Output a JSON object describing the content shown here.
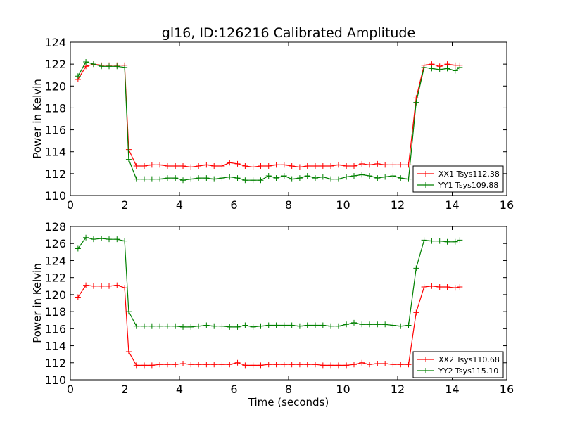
{
  "chart_data": [
    {
      "type": "line",
      "title": "gl16, ID:126216 Calibrated Amplitude",
      "xlabel": "",
      "ylabel": "Power in Kelvin",
      "xlim": [
        0,
        16
      ],
      "ylim": [
        110,
        124
      ],
      "xticks": [
        0,
        2,
        4,
        6,
        8,
        10,
        12,
        14,
        16
      ],
      "yticks": [
        110,
        112,
        114,
        116,
        118,
        120,
        122,
        124
      ],
      "grid": false,
      "legend_position": "lower-right",
      "x": [
        0.28,
        0.57,
        0.85,
        1.14,
        1.42,
        1.71,
        1.99,
        2.14,
        2.42,
        2.71,
        2.99,
        3.28,
        3.56,
        3.85,
        4.13,
        4.42,
        4.7,
        4.99,
        5.27,
        5.56,
        5.84,
        6.13,
        6.41,
        6.7,
        6.98,
        7.27,
        7.55,
        7.84,
        8.12,
        8.41,
        8.69,
        8.98,
        9.26,
        9.55,
        9.83,
        10.12,
        10.4,
        10.69,
        10.97,
        11.26,
        11.54,
        11.83,
        12.11,
        12.4,
        12.68,
        12.97,
        13.25,
        13.54,
        13.82,
        14.11,
        14.28
      ],
      "series": [
        {
          "name": "XX1 Tsys112.38",
          "color": "#ff0000",
          "values": [
            120.6,
            121.8,
            122.0,
            121.9,
            121.9,
            121.9,
            121.9,
            114.2,
            112.7,
            112.7,
            112.8,
            112.8,
            112.7,
            112.7,
            112.7,
            112.6,
            112.7,
            112.8,
            112.7,
            112.7,
            113.0,
            112.9,
            112.7,
            112.6,
            112.7,
            112.7,
            112.8,
            112.8,
            112.7,
            112.6,
            112.7,
            112.7,
            112.7,
            112.7,
            112.8,
            112.7,
            112.7,
            112.9,
            112.8,
            112.9,
            112.8,
            112.8,
            112.8,
            112.8,
            118.9,
            121.9,
            122.0,
            121.8,
            122.0,
            121.9,
            121.9
          ]
        },
        {
          "name": "YY1 Tsys109.88",
          "color": "#008000",
          "values": [
            120.9,
            122.2,
            122.0,
            121.8,
            121.8,
            121.8,
            121.7,
            113.3,
            111.5,
            111.5,
            111.5,
            111.5,
            111.6,
            111.6,
            111.4,
            111.5,
            111.6,
            111.6,
            111.5,
            111.6,
            111.7,
            111.6,
            111.4,
            111.4,
            111.4,
            111.8,
            111.6,
            111.8,
            111.5,
            111.6,
            111.8,
            111.6,
            111.7,
            111.5,
            111.5,
            111.7,
            111.8,
            111.9,
            111.8,
            111.6,
            111.7,
            111.8,
            111.6,
            111.5,
            118.5,
            121.7,
            121.6,
            121.5,
            121.6,
            121.4,
            121.7
          ]
        }
      ]
    },
    {
      "type": "line",
      "title": "",
      "xlabel": "Time (seconds)",
      "ylabel": "Power in Kelvin",
      "xlim": [
        0,
        16
      ],
      "ylim": [
        110,
        128
      ],
      "xticks": [
        0,
        2,
        4,
        6,
        8,
        10,
        12,
        14,
        16
      ],
      "yticks": [
        110,
        112,
        114,
        116,
        118,
        120,
        122,
        124,
        126,
        128
      ],
      "grid": false,
      "legend_position": "lower-right",
      "x": [
        0.28,
        0.57,
        0.85,
        1.14,
        1.42,
        1.71,
        1.99,
        2.14,
        2.42,
        2.71,
        2.99,
        3.28,
        3.56,
        3.85,
        4.13,
        4.42,
        4.7,
        4.99,
        5.27,
        5.56,
        5.84,
        6.13,
        6.41,
        6.7,
        6.98,
        7.27,
        7.55,
        7.84,
        8.12,
        8.41,
        8.69,
        8.98,
        9.26,
        9.55,
        9.83,
        10.12,
        10.4,
        10.69,
        10.97,
        11.26,
        11.54,
        11.83,
        12.11,
        12.4,
        12.68,
        12.97,
        13.25,
        13.54,
        13.82,
        14.11,
        14.28
      ],
      "series": [
        {
          "name": "XX2 Tsys110.68",
          "color": "#ff0000",
          "values": [
            119.7,
            121.1,
            121.0,
            121.0,
            121.0,
            121.1,
            120.8,
            113.3,
            111.7,
            111.7,
            111.7,
            111.8,
            111.8,
            111.8,
            111.9,
            111.8,
            111.8,
            111.8,
            111.8,
            111.8,
            111.8,
            112.0,
            111.7,
            111.7,
            111.7,
            111.8,
            111.8,
            111.8,
            111.8,
            111.8,
            111.8,
            111.8,
            111.7,
            111.7,
            111.7,
            111.7,
            111.8,
            112.0,
            111.8,
            111.9,
            111.9,
            111.8,
            111.8,
            111.8,
            117.9,
            120.9,
            121.0,
            120.9,
            120.9,
            120.8,
            120.9
          ]
        },
        {
          "name": "YY2 Tsys115.10",
          "color": "#008000",
          "values": [
            125.4,
            126.7,
            126.5,
            126.6,
            126.5,
            126.5,
            126.3,
            118.0,
            116.3,
            116.3,
            116.3,
            116.3,
            116.3,
            116.3,
            116.2,
            116.2,
            116.3,
            116.4,
            116.3,
            116.3,
            116.2,
            116.2,
            116.4,
            116.2,
            116.3,
            116.4,
            116.4,
            116.4,
            116.4,
            116.3,
            116.4,
            116.4,
            116.4,
            116.3,
            116.3,
            116.5,
            116.7,
            116.5,
            116.5,
            116.5,
            116.5,
            116.4,
            116.3,
            116.4,
            123.1,
            126.4,
            126.3,
            126.3,
            126.2,
            126.2,
            126.4
          ]
        }
      ]
    }
  ]
}
